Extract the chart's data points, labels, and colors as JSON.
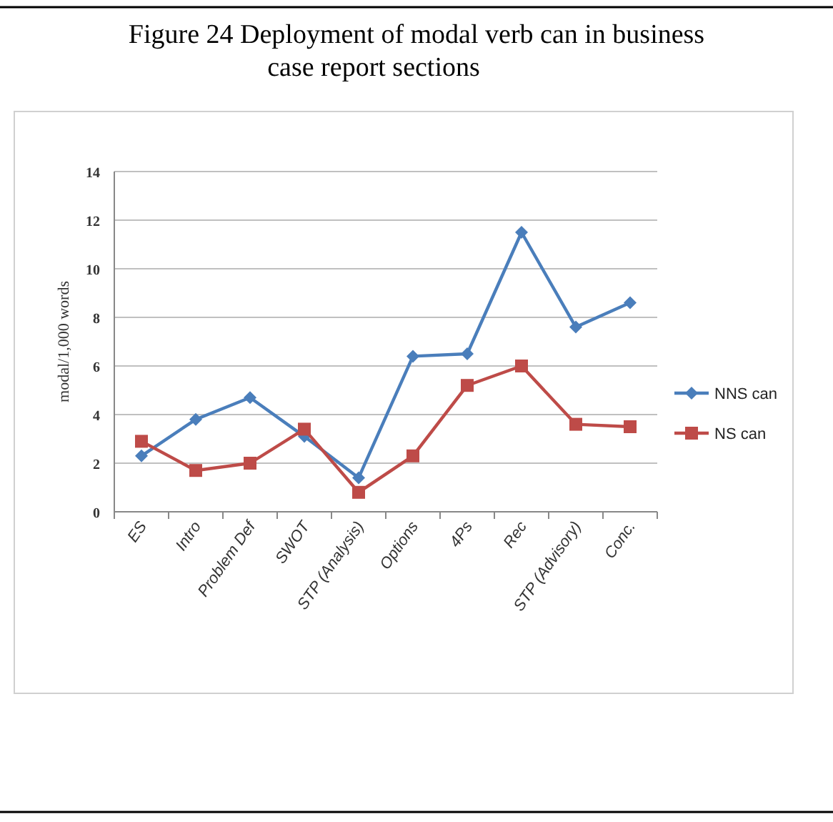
{
  "chart_data": {
    "type": "line",
    "title": "Figure 24 Deployment of modal verb can in business case report sections",
    "ylabel": "modal/1,000 words",
    "categories": [
      "ES",
      "Intro",
      "Problem Def",
      "SWOT",
      "STP (Analysis)",
      "Options",
      "4Ps",
      "Rec",
      "STP (Advisory)",
      "Conc."
    ],
    "series": [
      {
        "name": "NNS can",
        "color": "#4a7ebb",
        "marker": "diamond",
        "values": [
          2.3,
          3.8,
          4.7,
          3.1,
          1.4,
          6.4,
          6.5,
          11.5,
          7.6,
          8.6
        ]
      },
      {
        "name": "NS can",
        "color": "#be4b48",
        "marker": "square",
        "values": [
          2.9,
          1.7,
          2.0,
          3.4,
          0.8,
          2.3,
          5.2,
          6.0,
          3.6,
          3.5
        ]
      }
    ],
    "ylim": [
      0,
      14
    ],
    "yticks": [
      0,
      2,
      4,
      6,
      8,
      10,
      12,
      14
    ],
    "grid": "y",
    "legend": "right"
  }
}
